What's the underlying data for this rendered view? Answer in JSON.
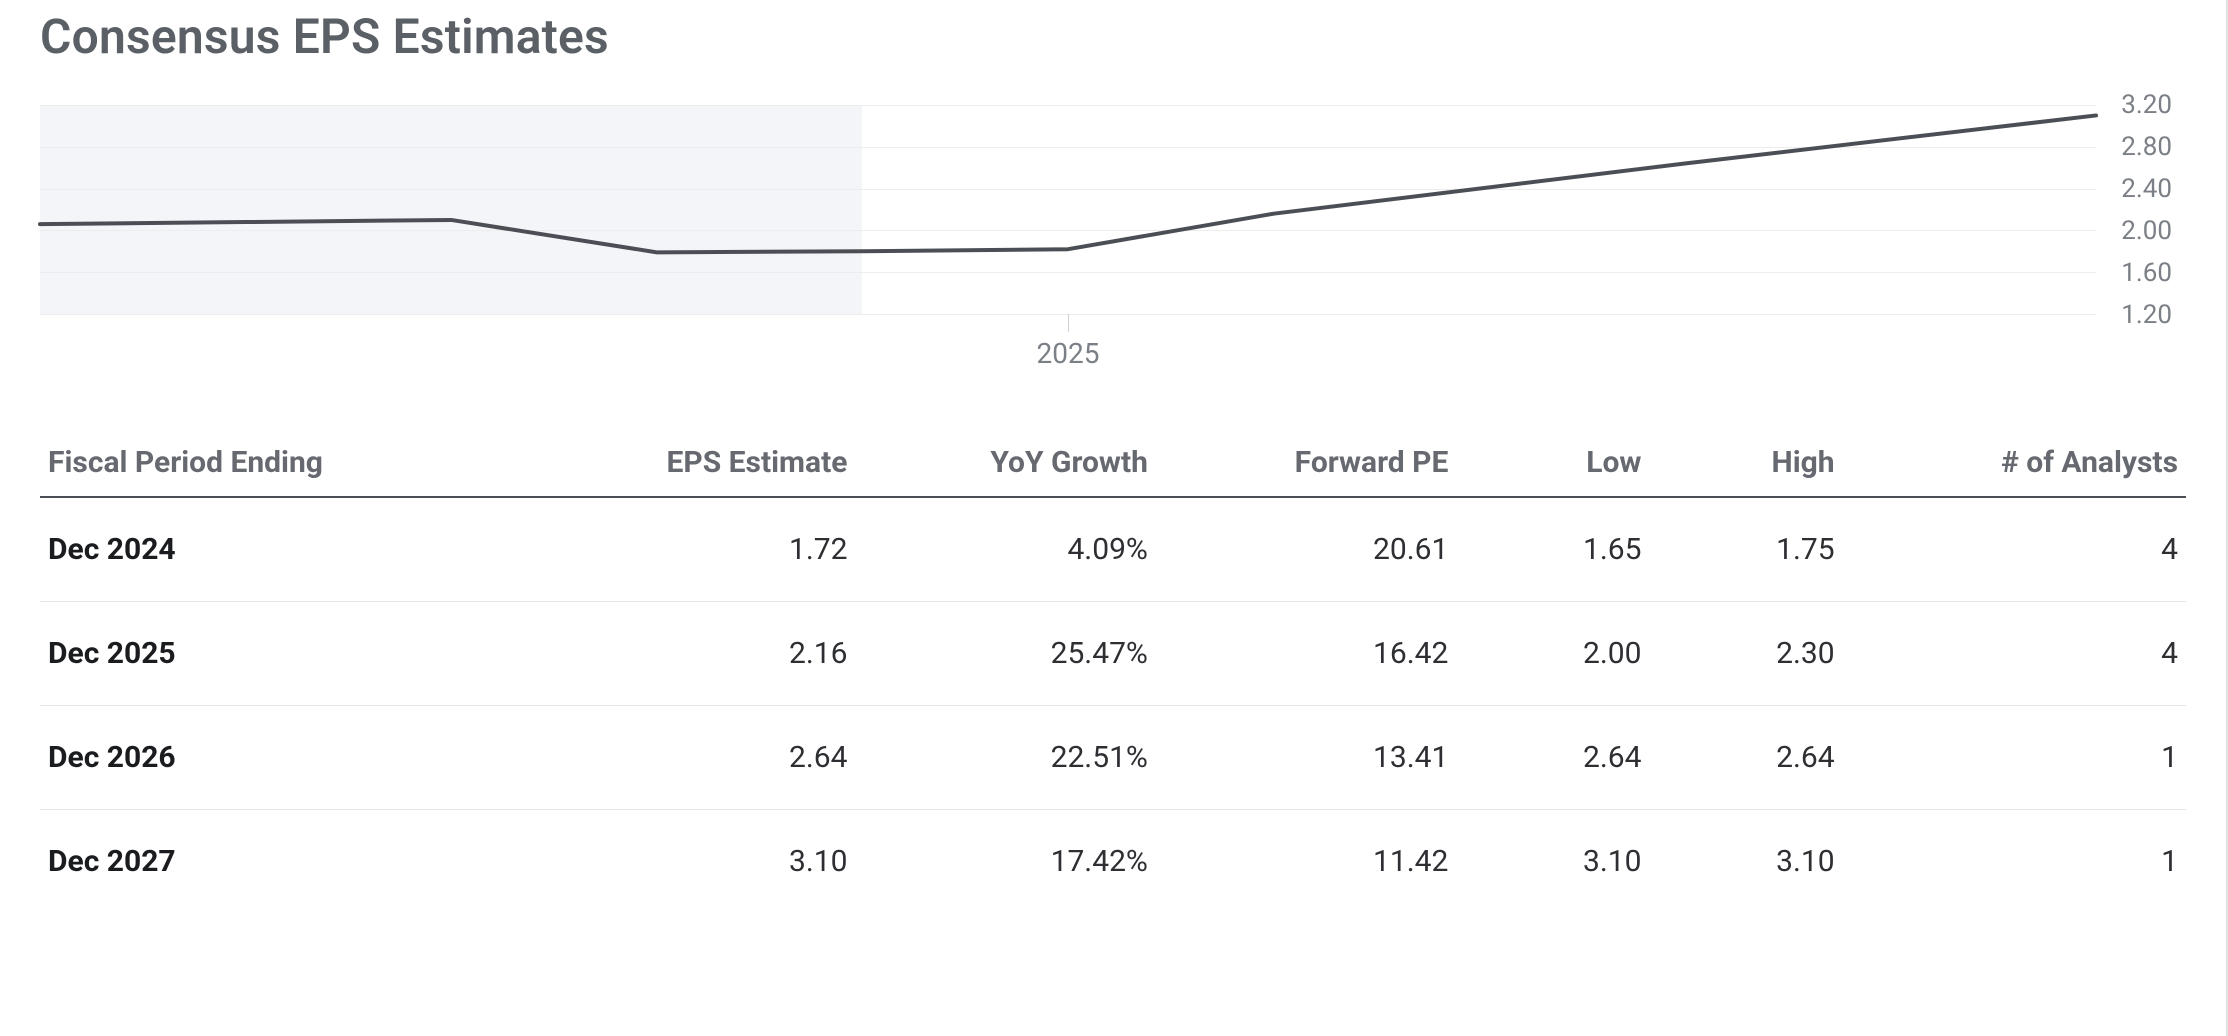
{
  "title": "Consensus EPS Estimates",
  "chart": {
    "type": "line",
    "y_min": 1.2,
    "y_max": 3.2,
    "y_ticks": [
      3.2,
      2.8,
      2.4,
      2.0,
      1.6,
      1.2
    ],
    "x_min": 2022.5,
    "x_max": 2027.5,
    "x_ticks": [
      {
        "value": 2025,
        "label": "2025"
      }
    ],
    "shade_to_x": 2024.5,
    "series": {
      "points": [
        {
          "x": 2022.5,
          "y": 2.06
        },
        {
          "x": 2023.0,
          "y": 2.08
        },
        {
          "x": 2023.5,
          "y": 2.1
        },
        {
          "x": 2024.0,
          "y": 1.79
        },
        {
          "x": 2024.5,
          "y": 1.8
        },
        {
          "x": 2025.0,
          "y": 1.82
        },
        {
          "x": 2025.5,
          "y": 2.16
        },
        {
          "x": 2026.5,
          "y": 2.64
        },
        {
          "x": 2027.5,
          "y": 3.1
        }
      ],
      "line_color": "#4b4f55",
      "line_width": 4
    },
    "grid_color": "#ededed",
    "shade_color": "#f4f5f8",
    "axis_font_color": "#7b7f86",
    "axis_font_size": 26
  },
  "table": {
    "columns": [
      {
        "key": "period",
        "label": "Fiscal Period Ending",
        "align": "left"
      },
      {
        "key": "eps",
        "label": "EPS Estimate",
        "align": "right"
      },
      {
        "key": "yoy",
        "label": "YoY Growth",
        "align": "right"
      },
      {
        "key": "fpe",
        "label": "Forward PE",
        "align": "right"
      },
      {
        "key": "low",
        "label": "Low",
        "align": "right"
      },
      {
        "key": "high",
        "label": "High",
        "align": "right"
      },
      {
        "key": "analysts",
        "label": "# of Analysts",
        "align": "right"
      }
    ],
    "rows": [
      {
        "period": "Dec 2024",
        "eps": "1.72",
        "yoy": "4.09%",
        "fpe": "20.61",
        "low": "1.65",
        "high": "1.75",
        "analysts": "4"
      },
      {
        "period": "Dec 2025",
        "eps": "2.16",
        "yoy": "25.47%",
        "fpe": "16.42",
        "low": "2.00",
        "high": "2.30",
        "analysts": "4"
      },
      {
        "period": "Dec 2026",
        "eps": "2.64",
        "yoy": "22.51%",
        "fpe": "13.41",
        "low": "2.64",
        "high": "2.64",
        "analysts": "1"
      },
      {
        "period": "Dec 2027",
        "eps": "3.10",
        "yoy": "17.42%",
        "fpe": "11.42",
        "low": "3.10",
        "high": "3.10",
        "analysts": "1"
      }
    ],
    "col_widths_pct": [
      24,
      14,
      14,
      14,
      9,
      9,
      16
    ]
  },
  "colors": {
    "title": "#5b5f66",
    "header_border": "#4b4f55",
    "row_border": "#e6e6e6"
  }
}
